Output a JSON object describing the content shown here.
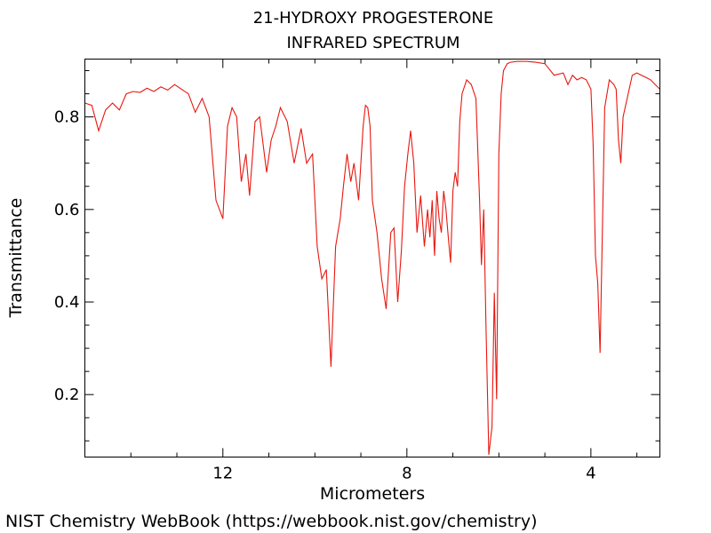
{
  "chart_data": {
    "type": "line",
    "title": "21-HYDROXY PROGESTERONE",
    "subtitle": "INFRARED SPECTRUM",
    "xlabel": "Micrometers",
    "ylabel": "Transmittance",
    "x_direction": "decreasing (left to right)",
    "xlim": [
      15,
      2.5
    ],
    "ylim": [
      0.065,
      0.925
    ],
    "x_ticks": [
      12,
      8,
      4
    ],
    "y_ticks": [
      0.2,
      0.4,
      0.6,
      0.8
    ],
    "x_tick_labels": [
      "12",
      "8",
      "4"
    ],
    "y_tick_labels": [
      "0.2",
      "0.4",
      "0.6",
      "0.8"
    ],
    "grid": false,
    "line_color": "#e8170f",
    "series": [
      {
        "x": [
          15.0,
          14.85,
          14.7,
          14.55,
          14.4,
          14.25,
          14.1,
          13.95,
          13.8,
          13.65,
          13.5,
          13.35,
          13.2,
          13.05,
          12.9,
          12.75,
          12.6,
          12.45,
          12.3,
          12.15,
          12.0,
          11.9,
          11.8,
          11.7,
          11.6,
          11.5,
          11.42,
          11.3,
          11.2,
          11.05,
          10.95,
          10.85,
          10.75,
          10.6,
          10.45,
          10.3,
          10.18,
          10.05,
          9.95,
          9.85,
          9.75,
          9.65,
          9.55,
          9.45,
          9.38,
          9.3,
          9.22,
          9.15,
          9.05,
          8.95,
          8.9,
          8.85,
          8.8,
          8.75,
          8.65,
          8.55,
          8.45,
          8.35,
          8.28,
          8.2,
          8.12,
          8.05,
          7.98,
          7.92,
          7.85,
          7.78,
          7.7,
          7.62,
          7.55,
          7.5,
          7.45,
          7.4,
          7.35,
          7.3,
          7.25,
          7.2,
          7.15,
          7.1,
          7.05,
          7.0,
          6.95,
          6.9,
          6.85,
          6.8,
          6.7,
          6.6,
          6.5,
          6.42,
          6.38,
          6.33,
          6.28,
          6.22,
          6.15,
          6.1,
          6.05,
          6.0,
          5.95,
          5.9,
          5.82,
          5.75,
          5.6,
          5.4,
          5.2,
          5.0,
          4.8,
          4.6,
          4.5,
          4.4,
          4.3,
          4.2,
          4.1,
          4.0,
          3.95,
          3.9,
          3.85,
          3.8,
          3.7,
          3.6,
          3.5,
          3.45,
          3.4,
          3.35,
          3.3,
          3.1,
          3.0,
          2.9,
          2.8,
          2.7,
          2.6,
          2.5
        ],
        "y": [
          0.83,
          0.825,
          0.77,
          0.815,
          0.83,
          0.815,
          0.85,
          0.855,
          0.853,
          0.862,
          0.855,
          0.865,
          0.858,
          0.87,
          0.86,
          0.85,
          0.81,
          0.84,
          0.8,
          0.62,
          0.58,
          0.78,
          0.82,
          0.8,
          0.66,
          0.72,
          0.63,
          0.79,
          0.8,
          0.68,
          0.75,
          0.78,
          0.82,
          0.79,
          0.7,
          0.775,
          0.7,
          0.72,
          0.52,
          0.45,
          0.47,
          0.26,
          0.52,
          0.58,
          0.65,
          0.72,
          0.66,
          0.7,
          0.62,
          0.78,
          0.825,
          0.82,
          0.78,
          0.62,
          0.55,
          0.45,
          0.385,
          0.55,
          0.56,
          0.4,
          0.51,
          0.65,
          0.72,
          0.77,
          0.7,
          0.55,
          0.63,
          0.52,
          0.6,
          0.54,
          0.62,
          0.5,
          0.64,
          0.58,
          0.55,
          0.64,
          0.6,
          0.54,
          0.485,
          0.64,
          0.68,
          0.65,
          0.79,
          0.85,
          0.88,
          0.87,
          0.84,
          0.62,
          0.48,
          0.6,
          0.35,
          0.07,
          0.13,
          0.42,
          0.19,
          0.72,
          0.85,
          0.9,
          0.915,
          0.918,
          0.92,
          0.92,
          0.918,
          0.915,
          0.89,
          0.895,
          0.87,
          0.89,
          0.88,
          0.885,
          0.88,
          0.86,
          0.74,
          0.5,
          0.44,
          0.29,
          0.82,
          0.88,
          0.87,
          0.86,
          0.75,
          0.7,
          0.8,
          0.89,
          0.895,
          0.89,
          0.885,
          0.88,
          0.87,
          0.86
        ]
      }
    ]
  },
  "credit": "NIST Chemistry WebBook (https://webbook.nist.gov/chemistry)"
}
